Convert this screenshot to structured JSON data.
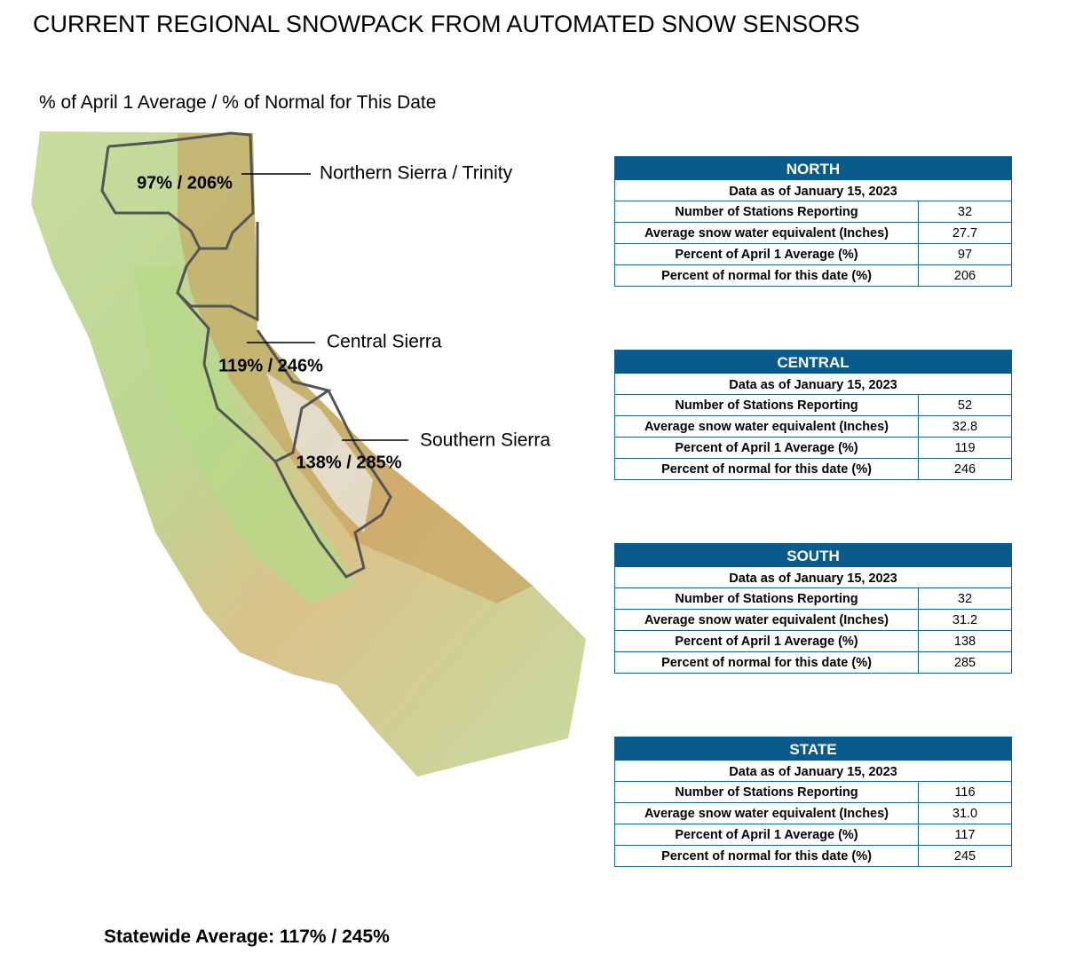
{
  "title": "CURRENT REGIONAL SNOWPACK FROM AUTOMATED SNOW SENSORS",
  "subtitle": "% of April 1 Average / % of Normal for This Date",
  "regions": [
    {
      "name": "Northern Sierra / Trinity",
      "value": "97% / 206%"
    },
    {
      "name": "Central Sierra",
      "value": "119% / 246%"
    },
    {
      "name": "Southern Sierra",
      "value": "138% / 285%"
    }
  ],
  "tables": [
    {
      "header": "NORTH",
      "date": "Data as of January 15, 2023",
      "rows": [
        [
          "Number of Stations Reporting",
          "32"
        ],
        [
          "Average snow water equivalent (Inches)",
          "27.7"
        ],
        [
          "Percent of April 1 Average (%)",
          "97"
        ],
        [
          "Percent of normal for this date (%)",
          "206"
        ]
      ]
    },
    {
      "header": "CENTRAL",
      "date": "Data as of January 15, 2023",
      "rows": [
        [
          "Number of Stations Reporting",
          "52"
        ],
        [
          "Average snow water equivalent (Inches)",
          "32.8"
        ],
        [
          "Percent of April 1 Average (%)",
          "119"
        ],
        [
          "Percent of normal for this date (%)",
          "246"
        ]
      ]
    },
    {
      "header": "SOUTH",
      "date": "Data as of January 15, 2023",
      "rows": [
        [
          "Number of Stations Reporting",
          "32"
        ],
        [
          "Average snow water equivalent (Inches)",
          "31.2"
        ],
        [
          "Percent of April 1 Average (%)",
          "138"
        ],
        [
          "Percent of normal for this date (%)",
          "285"
        ]
      ]
    },
    {
      "header": "STATE",
      "date": "Data as of January 15, 2023",
      "rows": [
        [
          "Number of Stations Reporting",
          "116"
        ],
        [
          "Average snow water equivalent (Inches)",
          "31.0"
        ],
        [
          "Percent of April 1 Average (%)",
          "117"
        ],
        [
          "Percent of normal for this date (%)",
          "245"
        ]
      ]
    }
  ],
  "footer": "Statewide Average: 117% / 245%"
}
